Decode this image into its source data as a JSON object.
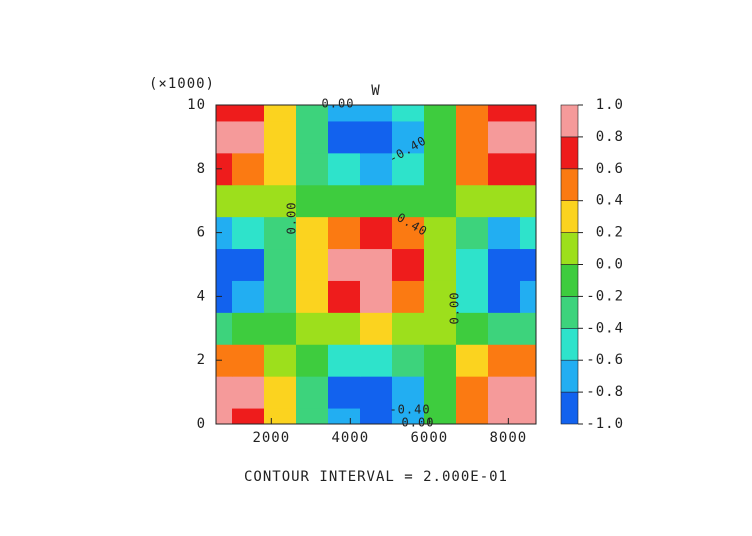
{
  "chart_data": {
    "type": "contour",
    "title": "W",
    "y_multiplier": "(×1000)",
    "footer": "CONTOUR INTERVAL = 2.000E-01",
    "x": [
      600,
      1410,
      2220,
      3030,
      3840,
      4650,
      5460,
      6270,
      7080,
      7890,
      8700
    ],
    "y": [
      0,
      1,
      2,
      3,
      4,
      5,
      6,
      7,
      8,
      9,
      10
    ],
    "z": [
      [
        0.9,
        0.77,
        0.3,
        -0.31,
        -0.78,
        -0.9,
        -0.62,
        -0.05,
        0.54,
        0.88,
        0.83
      ],
      [
        0.94,
        0.81,
        0.31,
        -0.32,
        -0.82,
        -0.94,
        -0.65,
        -0.06,
        0.56,
        0.92,
        0.86
      ],
      [
        0.49,
        0.42,
        0.16,
        -0.17,
        -0.42,
        -0.49,
        -0.33,
        -0.03,
        0.29,
        0.48,
        0.45
      ],
      [
        -0.22,
        -0.19,
        -0.07,
        0.07,
        0.19,
        0.22,
        0.15,
        0.01,
        -0.13,
        -0.21,
        -0.2
      ],
      [
        -0.81,
        -0.7,
        -0.27,
        0.28,
        0.71,
        0.81,
        0.56,
        0.05,
        -0.48,
        -0.8,
        -0.75
      ],
      [
        -0.98,
        -0.84,
        -0.33,
        0.34,
        0.85,
        0.98,
        0.67,
        0.06,
        -0.58,
        -0.96,
        -0.9
      ],
      [
        -0.64,
        -0.55,
        -0.21,
        0.22,
        0.56,
        0.64,
        0.44,
        0.04,
        -0.38,
        -0.63,
        -0.59
      ],
      [
        0.03,
        0.03,
        0.01,
        -0.01,
        -0.03,
        -0.03,
        -0.02,
        0,
        0.02,
        0.03,
        0.03
      ],
      [
        0.68,
        0.59,
        0.23,
        -0.23,
        -0.59,
        -0.68,
        -0.47,
        -0.04,
        0.41,
        0.67,
        0.63
      ],
      [
        0.99,
        0.85,
        0.33,
        -0.34,
        -0.86,
        -0.99,
        -0.68,
        -0.06,
        0.59,
        0.97,
        0.91
      ],
      [
        0.77,
        0.66,
        0.26,
        -0.27,
        -0.67,
        -0.77,
        -0.53,
        -0.05,
        0.46,
        0.76,
        0.71
      ]
    ],
    "xlim": [
      600,
      8700
    ],
    "ylim": [
      0,
      10
    ],
    "xticks": [
      2000,
      4000,
      6000,
      8000
    ],
    "yticks": [
      0,
      2,
      4,
      6,
      8,
      10
    ],
    "levels": [
      {
        "value": -1,
        "label": "-1.0"
      },
      {
        "value": -0.8,
        "label": "-0.8"
      },
      {
        "value": -0.6,
        "label": "-0.6"
      },
      {
        "value": -0.4,
        "label": "-0.4"
      },
      {
        "value": -0.2,
        "label": "-0.2"
      },
      {
        "value": 0,
        "label": "0.0"
      },
      {
        "value": 0.2,
        "label": "0.2"
      },
      {
        "value": 0.4,
        "label": "0.4"
      },
      {
        "value": 0.6,
        "label": "0.6"
      },
      {
        "value": 0.8,
        "label": "0.8"
      },
      {
        "value": 1,
        "label": "1.0"
      }
    ],
    "colors": [
      "#1262ee",
      "#22aef2",
      "#2ee3cb",
      "#3dd37c",
      "#3ecc3e",
      "#9ddf1c",
      "#fbd31f",
      "#fb7a12",
      "#ee1c1c",
      "#f59a9a"
    ],
    "contour_labels": [
      "0.00",
      "-0.40",
      "0.00",
      "0.40",
      "0.00",
      "-0.40",
      "0.00"
    ]
  }
}
